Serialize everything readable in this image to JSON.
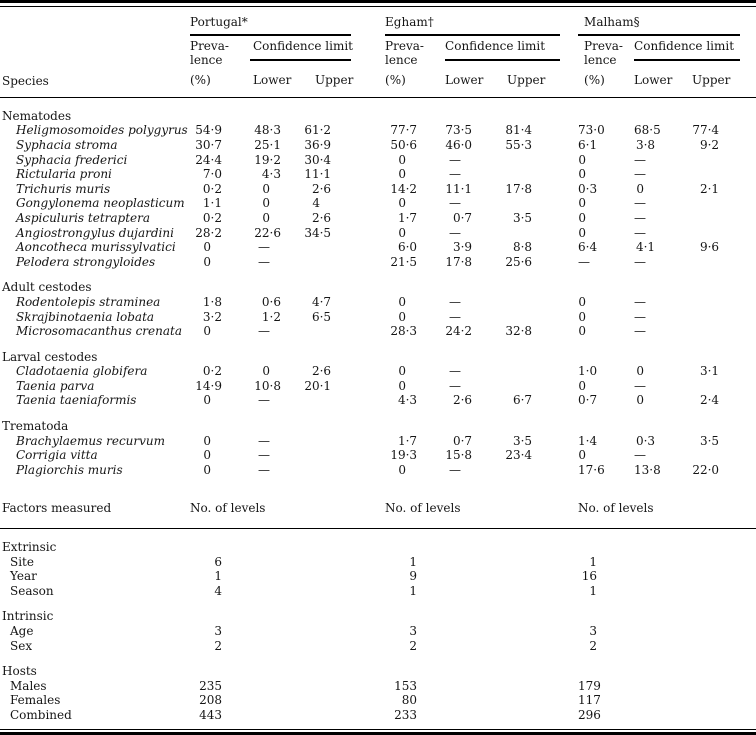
{
  "table": {
    "species_col_label": "Species",
    "groups": [
      {
        "name": "Portugal*"
      },
      {
        "name": "Egham†"
      },
      {
        "name": "Malham§"
      }
    ],
    "subheader": {
      "prevalence_line": "Preva-\nlence",
      "prevalence_unit": "(%)",
      "confidence": "Confidence limit",
      "lower": "Lower",
      "upper": "Upper"
    },
    "sections": [
      {
        "title": "Nematodes",
        "rows": [
          {
            "species": "Heligmosomoides polygyrus",
            "values": [
              "54·9",
              "48·3",
              "61·2",
              "77·7",
              "73·5",
              "81·4",
              "73·0",
              "68·5",
              "77·4"
            ]
          },
          {
            "species": "Syphacia stroma",
            "values": [
              "30·7",
              "25·1",
              "36·9",
              "50·6",
              "46·0",
              "55·3",
              "6·1",
              "3·8",
              "9·2"
            ]
          },
          {
            "species": "Syphacia frederici",
            "values": [
              "24·4",
              "19·2",
              "30·4",
              "0",
              "—",
              "",
              "0",
              "—",
              ""
            ]
          },
          {
            "species": "Rictularia proni",
            "values": [
              "7·0",
              "4·3",
              "11·1",
              "0",
              "—",
              "",
              "0",
              "—",
              ""
            ]
          },
          {
            "species": "Trichuris muris",
            "values": [
              "0·2",
              "0",
              "2·6",
              "14·2",
              "11·1",
              "17·8",
              "0·3",
              "0",
              "2·1"
            ]
          },
          {
            "species": "Gongylonema neoplasticum",
            "values": [
              "1·1",
              "0",
              "4",
              "0",
              "—",
              "",
              "0",
              "—",
              ""
            ]
          },
          {
            "species": "Aspiculuris tetraptera",
            "values": [
              "0·2",
              "0",
              "2·6",
              "1·7",
              "0·7",
              "3·5",
              "0",
              "—",
              ""
            ]
          },
          {
            "species": "Angiostrongylus dujardini",
            "values": [
              "28·2",
              "22·6",
              "34·5",
              "0",
              "—",
              "",
              "0",
              "—",
              ""
            ]
          },
          {
            "species": "Aoncotheca murissylvatici",
            "values": [
              "0",
              "—",
              "",
              "6·0",
              "3·9",
              "8·8",
              "6·4",
              "4·1",
              "9·6"
            ]
          },
          {
            "species": "Pelodera strongyloides",
            "values": [
              "0",
              "—",
              "",
              "21·5",
              "17·8",
              "25·6",
              "—",
              "—",
              ""
            ]
          }
        ]
      },
      {
        "title": "Adult cestodes",
        "rows": [
          {
            "species": "Rodentolepis straminea",
            "values": [
              "1·8",
              "0·6",
              "4·7",
              "0",
              "—",
              "",
              "0",
              "—",
              ""
            ]
          },
          {
            "species": "Skrajbinotaenia lobata",
            "values": [
              "3·2",
              "1·2",
              "6·5",
              "0",
              "—",
              "",
              "0",
              "—",
              ""
            ]
          },
          {
            "species": "Microsomacanthus crenata",
            "values": [
              "0",
              "—",
              "",
              "28·3",
              "24·2",
              "32·8",
              "0",
              "—",
              ""
            ]
          }
        ]
      },
      {
        "title": "Larval cestodes",
        "rows": [
          {
            "species": "Cladotaenia globifera",
            "values": [
              "0·2",
              "0",
              "2·6",
              "0",
              "—",
              "",
              "1·0",
              "0",
              "3·1"
            ]
          },
          {
            "species": "Taenia parva",
            "values": [
              "14·9",
              "10·8",
              "20·1",
              "0",
              "—",
              "",
              "0",
              "—",
              ""
            ]
          },
          {
            "species": "Taenia taeniaformis",
            "values": [
              "0",
              "—",
              "",
              "4·3",
              "2·6",
              "6·7",
              "0·7",
              "0",
              "2·4"
            ]
          }
        ]
      },
      {
        "title": "Trematoda",
        "rows": [
          {
            "species": "Brachylaemus recurvum",
            "values": [
              "0",
              "—",
              "",
              "1·7",
              "0·7",
              "3·5",
              "1·4",
              "0·3",
              "3·5"
            ]
          },
          {
            "species": "Corrigia vitta",
            "values": [
              "0",
              "—",
              "",
              "19·3",
              "15·8",
              "23·4",
              "0",
              "—",
              ""
            ]
          },
          {
            "species": "Plagiorchis muris",
            "values": [
              "0",
              "—",
              "",
              "0",
              "—",
              "",
              "17·6",
              "13·8",
              "22·0"
            ]
          }
        ]
      }
    ],
    "factors_row": {
      "label": "Factors measured",
      "per_group": "No. of levels"
    },
    "factor_sections": [
      {
        "title": "Extrinsic",
        "rows": [
          {
            "label": "Site",
            "values": [
              "6",
              "1",
              "1"
            ]
          },
          {
            "label": "Year",
            "values": [
              "1",
              "9",
              "16"
            ]
          },
          {
            "label": "Season",
            "values": [
              "4",
              "1",
              "1"
            ]
          }
        ]
      },
      {
        "title": "Intrinsic",
        "rows": [
          {
            "label": "Age",
            "values": [
              "3",
              "3",
              "3"
            ]
          },
          {
            "label": "Sex",
            "values": [
              "2",
              "2",
              "2"
            ]
          }
        ]
      },
      {
        "title": "Hosts",
        "rows": [
          {
            "label": "Males",
            "values": [
              "235",
              "153",
              "179"
            ]
          },
          {
            "label": "Females",
            "values": [
              "208",
              "80",
              "117"
            ]
          },
          {
            "label": "Combined",
            "values": [
              "443",
              "233",
              "296"
            ]
          }
        ]
      }
    ]
  }
}
